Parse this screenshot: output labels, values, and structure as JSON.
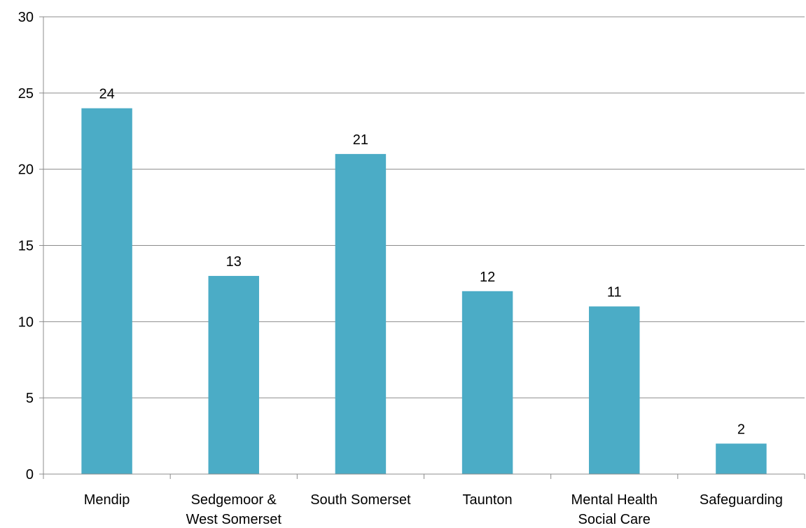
{
  "chart_data": {
    "type": "bar",
    "categories": [
      [
        "Mendip"
      ],
      [
        "Sedgemoor &",
        "West Somerset"
      ],
      [
        "South Somerset"
      ],
      [
        "Taunton"
      ],
      [
        "Mental Health",
        "Social Care"
      ],
      [
        "Safeguarding"
      ]
    ],
    "values": [
      24,
      13,
      21,
      12,
      11,
      2
    ],
    "data_labels": [
      "24",
      "13",
      "21",
      "12",
      "11",
      "2"
    ],
    "yticks": [
      0,
      5,
      10,
      15,
      20,
      25,
      30
    ],
    "ylim": [
      0,
      30
    ],
    "title": "",
    "xlabel": "",
    "ylabel": "",
    "grid": true,
    "legend": "none",
    "colors": {
      "bar": "#4bacc6",
      "grid": "#8c8c8c",
      "text": "#000000"
    }
  }
}
